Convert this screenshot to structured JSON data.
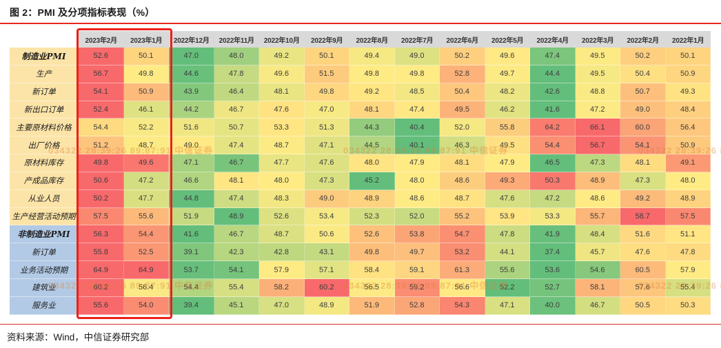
{
  "figure": {
    "title": "图 2：PMI 及分项指标表现（%）",
    "source": "资料来源：Wind，中信证券研究部"
  },
  "watermark": {
    "text": "034322  28:39:26 89:87:91  中信证券"
  },
  "highlight": {
    "description": "red frame around latest two month columns",
    "columns": [
      "2023年2月",
      "2023年1月"
    ],
    "color": "#ec2018"
  },
  "palette": {
    "header_bg": "#d9d9d9",
    "label_bg_manufacturing": "#fce4a8",
    "label_bg_non_manufacturing": "#b3cae6",
    "rule_red": "#e5261f",
    "cell_text": "#3d3d3d"
  },
  "chart_data": {
    "type": "heatmap",
    "title": "图 2：PMI 及分项指标表现（%）",
    "color_scale": {
      "min_color": "#63be7b",
      "mid_color": "#ffeb84",
      "max_color": "#f8696b",
      "mode": "per-row, midpoint = row median; green = low, red = high"
    },
    "columns": [
      "2023年2月",
      "2023年1月",
      "2022年12月",
      "2022年11月",
      "2022年10月",
      "2022年9月",
      "2022年8月",
      "2022年7月",
      "2022年6月",
      "2022年5月",
      "2022年4月",
      "2022年3月",
      "2022年2月",
      "2022年1月"
    ],
    "rows": [
      {
        "label": "制造业PMI",
        "bold": true,
        "section": "manufacturing",
        "values": [
          52.6,
          50.1,
          47.0,
          48.0,
          49.2,
          50.1,
          49.4,
          49.0,
          50.2,
          49.6,
          47.4,
          49.5,
          50.2,
          50.1
        ]
      },
      {
        "label": "生产",
        "bold": false,
        "section": "manufacturing",
        "values": [
          56.7,
          49.8,
          44.6,
          47.8,
          49.6,
          51.5,
          49.8,
          49.8,
          52.8,
          49.7,
          44.4,
          49.5,
          50.4,
          50.9
        ]
      },
      {
        "label": "新订单",
        "bold": false,
        "section": "manufacturing",
        "values": [
          54.1,
          50.9,
          43.9,
          46.4,
          48.1,
          49.8,
          49.2,
          48.5,
          50.4,
          48.2,
          42.6,
          48.8,
          50.7,
          49.3
        ]
      },
      {
        "label": "新出口订单",
        "bold": false,
        "section": "manufacturing",
        "values": [
          52.4,
          46.1,
          44.2,
          46.7,
          47.6,
          47.0,
          48.1,
          47.4,
          49.5,
          46.2,
          41.6,
          47.2,
          49.0,
          48.4
        ]
      },
      {
        "label": "主要原材料价格",
        "bold": false,
        "section": "manufacturing",
        "values": [
          54.4,
          52.2,
          51.6,
          50.7,
          53.3,
          51.3,
          44.3,
          40.4,
          52.0,
          55.8,
          64.2,
          66.1,
          60.0,
          56.4
        ]
      },
      {
        "label": "出厂价格",
        "bold": false,
        "section": "manufacturing",
        "values": [
          51.2,
          48.7,
          49.0,
          47.4,
          48.7,
          47.1,
          44.5,
          40.1,
          46.3,
          49.5,
          54.4,
          56.7,
          54.1,
          50.9
        ]
      },
      {
        "label": "原材料库存",
        "bold": false,
        "section": "manufacturing",
        "values": [
          49.8,
          49.6,
          47.1,
          46.7,
          47.7,
          47.6,
          48.0,
          47.9,
          48.1,
          47.9,
          46.5,
          47.3,
          48.1,
          49.1
        ]
      },
      {
        "label": "产成品库存",
        "bold": false,
        "section": "manufacturing",
        "values": [
          50.6,
          47.2,
          46.6,
          48.1,
          48.0,
          47.3,
          45.2,
          48.0,
          48.6,
          49.3,
          50.3,
          48.9,
          47.3,
          48.0
        ]
      },
      {
        "label": "从业人员",
        "bold": false,
        "section": "manufacturing",
        "values": [
          50.2,
          47.7,
          44.8,
          47.4,
          48.3,
          49.0,
          48.9,
          48.6,
          48.7,
          47.6,
          47.2,
          48.6,
          49.2,
          48.9
        ]
      },
      {
        "label": "生产经营活动预期",
        "bold": false,
        "section": "manufacturing",
        "values": [
          57.5,
          55.6,
          51.9,
          48.9,
          52.6,
          53.4,
          52.3,
          52.0,
          55.2,
          53.9,
          53.3,
          55.7,
          58.7,
          57.5
        ]
      },
      {
        "label": "非制造业PMI",
        "bold": true,
        "section": "non_manufacturing",
        "values": [
          56.3,
          54.4,
          41.6,
          46.7,
          48.7,
          50.6,
          52.6,
          53.8,
          54.7,
          47.8,
          41.9,
          48.4,
          51.6,
          51.1
        ]
      },
      {
        "label": "新订单",
        "bold": false,
        "section": "non_manufacturing",
        "values": [
          55.8,
          52.5,
          39.1,
          42.3,
          42.8,
          43.1,
          49.8,
          49.7,
          53.2,
          44.1,
          37.4,
          45.7,
          47.6,
          47.8
        ]
      },
      {
        "label": "业务活动预期",
        "bold": false,
        "section": "non_manufacturing",
        "values": [
          64.9,
          64.9,
          53.7,
          54.1,
          57.9,
          57.1,
          58.4,
          59.1,
          61.3,
          55.6,
          53.6,
          54.6,
          60.5,
          57.9
        ]
      },
      {
        "label": "建筑业",
        "bold": false,
        "section": "non_manufacturing",
        "values": [
          60.2,
          56.4,
          54.4,
          55.4,
          58.2,
          60.2,
          56.5,
          59.2,
          56.6,
          52.2,
          52.7,
          58.1,
          57.6,
          55.4
        ]
      },
      {
        "label": "服务业",
        "bold": false,
        "section": "non_manufacturing",
        "values": [
          55.6,
          54.0,
          39.4,
          45.1,
          47.0,
          48.9,
          51.9,
          52.8,
          54.3,
          47.1,
          40.0,
          46.7,
          50.5,
          50.3
        ]
      }
    ]
  }
}
